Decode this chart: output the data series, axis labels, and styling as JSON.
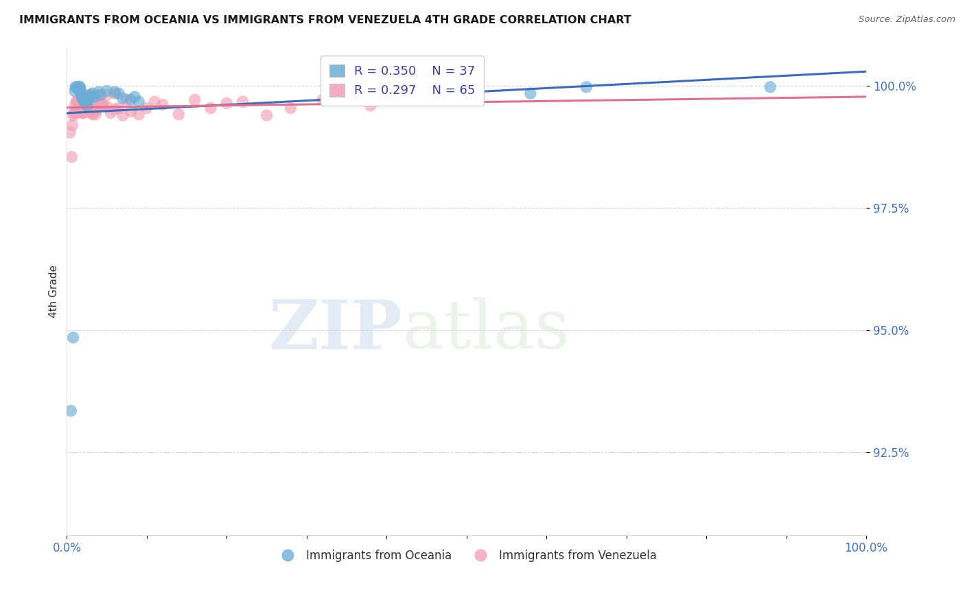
{
  "title": "IMMIGRANTS FROM OCEANIA VS IMMIGRANTS FROM VENEZUELA 4TH GRADE CORRELATION CHART",
  "source": "Source: ZipAtlas.com",
  "ylabel": "4th Grade",
  "ytick_labels": [
    "92.5%",
    "95.0%",
    "97.5%",
    "100.0%"
  ],
  "ytick_values": [
    0.925,
    0.95,
    0.975,
    1.0
  ],
  "xlim": [
    0.0,
    1.0
  ],
  "ylim": [
    0.908,
    1.008
  ],
  "legend_blue_r": "R = 0.350",
  "legend_blue_n": "N = 37",
  "legend_pink_r": "R = 0.297",
  "legend_pink_n": "N = 65",
  "blue_label": "Immigrants from Oceania",
  "pink_label": "Immigrants from Venezuela",
  "blue_color": "#6aaed6",
  "pink_color": "#f4a0b5",
  "blue_trend_color": "#3a6bbf",
  "pink_trend_color": "#e07090",
  "watermark_zip": "ZIP",
  "watermark_atlas": "atlas",
  "blue_scatter_x": [
    0.005,
    0.008,
    0.01,
    0.011,
    0.012,
    0.013,
    0.014,
    0.015,
    0.016,
    0.016,
    0.017,
    0.018,
    0.019,
    0.02,
    0.021,
    0.022,
    0.023,
    0.024,
    0.025,
    0.026,
    0.027,
    0.028,
    0.03,
    0.032,
    0.034,
    0.04,
    0.042,
    0.05,
    0.06,
    0.065,
    0.07,
    0.08,
    0.085,
    0.09,
    0.58,
    0.88,
    0.65
  ],
  "blue_scatter_y": [
    0.9335,
    0.9485,
    0.999,
    0.9998,
    0.9998,
    0.9995,
    0.9995,
    0.9998,
    0.9999,
    0.9992,
    0.9995,
    0.9985,
    0.9975,
    0.998,
    0.9972,
    0.9968,
    0.9968,
    0.9965,
    0.996,
    0.997,
    0.9972,
    0.9978,
    0.9982,
    0.9985,
    0.9978,
    0.9988,
    0.9982,
    0.999,
    0.9988,
    0.9985,
    0.9975,
    0.9972,
    0.9978,
    0.9968,
    0.9985,
    0.9998,
    0.9998
  ],
  "pink_scatter_x": [
    0.004,
    0.006,
    0.007,
    0.008,
    0.009,
    0.01,
    0.011,
    0.012,
    0.013,
    0.014,
    0.015,
    0.016,
    0.017,
    0.018,
    0.019,
    0.02,
    0.021,
    0.022,
    0.023,
    0.024,
    0.025,
    0.026,
    0.027,
    0.028,
    0.029,
    0.03,
    0.031,
    0.032,
    0.033,
    0.034,
    0.035,
    0.036,
    0.037,
    0.038,
    0.04,
    0.042,
    0.045,
    0.05,
    0.055,
    0.06,
    0.065,
    0.07,
    0.075,
    0.08,
    0.09,
    0.1,
    0.11,
    0.12,
    0.14,
    0.16,
    0.18,
    0.2,
    0.22,
    0.25,
    0.28,
    0.32,
    0.38,
    0.02,
    0.025,
    0.03,
    0.035,
    0.04,
    0.045,
    0.05,
    0.06
  ],
  "pink_scatter_y": [
    0.9905,
    0.9855,
    0.992,
    0.994,
    0.9945,
    0.996,
    0.9945,
    0.9968,
    0.997,
    0.9958,
    0.9958,
    0.9992,
    0.9972,
    0.9968,
    0.9945,
    0.998,
    0.9945,
    0.9978,
    0.9962,
    0.9955,
    0.9982,
    0.9962,
    0.9975,
    0.9965,
    0.9955,
    0.9972,
    0.9945,
    0.9942,
    0.9945,
    0.995,
    0.9955,
    0.9942,
    0.9952,
    0.9972,
    0.9968,
    0.9968,
    0.996,
    0.9958,
    0.9945,
    0.9952,
    0.9955,
    0.994,
    0.9972,
    0.9948,
    0.9942,
    0.9955,
    0.9968,
    0.9962,
    0.9942,
    0.9972,
    0.9955,
    0.9965,
    0.9968,
    0.994,
    0.9955,
    0.9972,
    0.996,
    0.9945,
    0.9972,
    0.9978,
    0.9965,
    0.998,
    0.9962,
    0.9982,
    0.9985
  ]
}
